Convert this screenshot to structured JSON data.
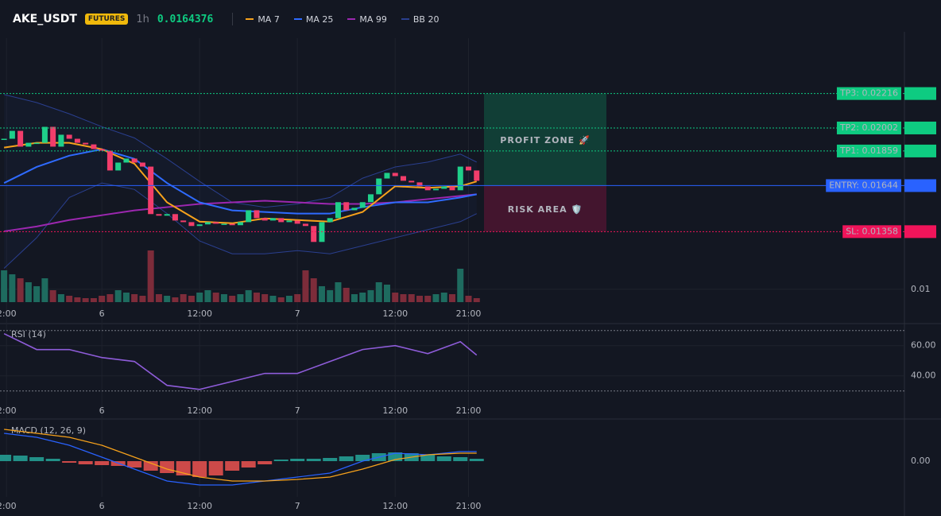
{
  "header": {
    "symbol": "AKE_USDT",
    "badge": "FUTURES",
    "timeframe": "1h",
    "price": "0.0164376"
  },
  "chart_data": {
    "type": "candlestick",
    "xlim": [
      -0.5,
      110.5
    ],
    "xticks": [
      {
        "value": 0.3,
        "label": "2:00"
      },
      {
        "value": 12,
        "label": "6"
      },
      {
        "value": 24,
        "label": "12:00"
      },
      {
        "value": 36,
        "label": "7"
      },
      {
        "value": 48,
        "label": "12:00"
      },
      {
        "value": 57,
        "label": "21:00"
      }
    ],
    "ylim": [
      0.0092,
      0.0256
    ],
    "yticks": [
      {
        "value": 0.01,
        "label": "0.01"
      }
    ],
    "up_color": "#1fcf8a",
    "down_color": "#f23d6b",
    "close": [
      0.01935,
      0.01984,
      0.01886,
      0.0191,
      0.0191,
      0.02009,
      0.01886,
      0.0196,
      0.01935,
      0.0191,
      0.019,
      0.01871,
      0.01861,
      0.01738,
      0.01787,
      0.01812,
      0.01787,
      0.01762,
      0.01467,
      0.01457,
      0.01467,
      0.01427,
      0.01417,
      0.01393,
      0.01403,
      0.01417,
      0.01407,
      0.01407,
      0.01398,
      0.01417,
      0.01491,
      0.01442,
      0.01427,
      0.01442,
      0.01417,
      0.01427,
      0.01407,
      0.01393,
      0.01294,
      0.01417,
      0.01442,
      0.01541,
      0.01491,
      0.01506,
      0.01541,
      0.0159,
      0.01688,
      0.01723,
      0.01703,
      0.01674,
      0.01664,
      0.01639,
      0.01615,
      0.01624,
      0.01639,
      0.01615,
      0.01762,
      0.01738,
      0.01674
    ],
    "volume": [
      40,
      35,
      30,
      25,
      20,
      30,
      15,
      10,
      8,
      6,
      5,
      5,
      8,
      10,
      15,
      12,
      10,
      8,
      65,
      10,
      8,
      6,
      10,
      8,
      12,
      15,
      12,
      10,
      8,
      10,
      15,
      12,
      10,
      8,
      6,
      8,
      10,
      40,
      30,
      20,
      15,
      25,
      18,
      10,
      12,
      15,
      25,
      22,
      12,
      10,
      10,
      8,
      8,
      10,
      12,
      10,
      42,
      8,
      5
    ],
    "volume_lim": [
      0,
      332
    ],
    "line_x": [
      0,
      4,
      8,
      12,
      16,
      20,
      24,
      28,
      32,
      36,
      40,
      44,
      48,
      52,
      56,
      58
    ],
    "series": [
      {
        "name": "MA 7",
        "color": "#f7a21b",
        "values": [
          0.0188,
          0.0191,
          0.0191,
          0.0187,
          0.0178,
          0.0154,
          0.0142,
          0.0141,
          0.0144,
          0.0143,
          0.0142,
          0.0148,
          0.0164,
          0.0163,
          0.0164,
          0.0167
        ]
      },
      {
        "name": "MA 25",
        "color": "#2f6bff",
        "values": [
          0.0166,
          0.0176,
          0.0183,
          0.0187,
          0.0181,
          0.0166,
          0.0154,
          0.0149,
          0.0148,
          0.0147,
          0.0147,
          0.0151,
          0.0154,
          0.0154,
          0.0157,
          0.0159
        ]
      },
      {
        "name": "MA 99",
        "color": "#9c27b0",
        "values": [
          0.0136,
          0.0139,
          0.0143,
          0.0146,
          0.0149,
          0.0151,
          0.0153,
          0.0154,
          0.0155,
          0.0154,
          0.0153,
          0.0153,
          0.0154,
          0.0156,
          0.0158,
          0.0159
        ]
      },
      {
        "name": "BB 20",
        "color": "#2a3f8f",
        "values": [
          0.0221,
          0.0216,
          0.0209,
          0.0201,
          0.0194,
          0.0181,
          0.0167,
          0.0154,
          0.0151,
          0.0153,
          0.0157,
          0.0169,
          0.0176,
          0.0179,
          0.0184,
          0.0179
        ],
        "lower": [
          0.0113,
          0.0132,
          0.0157,
          0.0166,
          0.0162,
          0.0147,
          0.013,
          0.0122,
          0.0122,
          0.0124,
          0.0122,
          0.0127,
          0.0132,
          0.0137,
          0.0142,
          0.0147
        ]
      }
    ],
    "levels": [
      {
        "label": "TP3: 0.02216",
        "value": 0.02216,
        "axis_label": "0.02",
        "color": "#0ecb81",
        "style": "dotted"
      },
      {
        "label": "TP2: 0.02002",
        "value": 0.02002,
        "axis_label": "0.02",
        "color": "#0ecb81",
        "style": "dotted"
      },
      {
        "label": "TP1: 0.01859",
        "value": 0.01859,
        "axis_label": "0.02",
        "color": "#0ecb81",
        "style": "dotted"
      },
      {
        "label": "ENTRY: 0.01644",
        "value": 0.01644,
        "axis_label": "0.02",
        "color": "#2962ff",
        "style": "solid"
      },
      {
        "label": "SL: 0.01358",
        "value": 0.01358,
        "axis_label": "0.01",
        "color": "#f0145a",
        "style": "dotted"
      }
    ],
    "zones": [
      {
        "label": "PROFIT ZONE 🚀",
        "color": "#0ecb81"
      },
      {
        "label": "RISK AREA 🛡️",
        "color": "#f0145a"
      }
    ],
    "rsi": {
      "label": "RSI (14)",
      "color": "#8e5cd9",
      "ylim": [
        23,
        73
      ],
      "yticks": [
        {
          "value": 40,
          "label": "40.00"
        },
        {
          "value": 60,
          "label": "60.00"
        }
      ],
      "bands": [
        70,
        30
      ],
      "values": [
        67.9,
        57.4,
        57.4,
        52.1,
        49.5,
        33.7,
        31,
        36.3,
        41.6,
        41.6,
        49.5,
        57.4,
        60,
        54.7,
        62.6,
        53.7
      ]
    },
    "macd": {
      "label": "MACD (12, 26, 9)",
      "ylim": [
        -0.0009,
        0.00104
      ],
      "yticks": [
        {
          "value": 0,
          "label": "0.00"
        }
      ],
      "hist_x": [
        0,
        2,
        4,
        6,
        8,
        10,
        12,
        14,
        16,
        18,
        20,
        22,
        24,
        26,
        28,
        30,
        32,
        34,
        36,
        38,
        40,
        42,
        44,
        46,
        48,
        50,
        52,
        54,
        56,
        58
      ],
      "histogram": [
        0.00016,
        0.00014,
        0.0001,
        6e-05,
        -4e-05,
        -8e-05,
        -0.0001,
        -0.00012,
        -0.00016,
        -0.00024,
        -0.0003,
        -0.00036,
        -0.0004,
        -0.00036,
        -0.00024,
        -0.00016,
        -8e-05,
        4e-05,
        6e-05,
        6e-05,
        8e-05,
        0.00012,
        0.00016,
        0.0002,
        0.00022,
        0.0002,
        0.00016,
        0.00012,
        0.0001,
        6e-05
      ],
      "macd_color": "#2962ff",
      "signal_color": "#f7a21b",
      "macd": [
        0.0007,
        0.0006,
        0.0004,
        0.0001,
        -0.0002,
        -0.0005,
        -0.0006,
        -0.0006,
        -0.0005,
        -0.0004,
        -0.0003,
        0,
        0.0002,
        0.00016,
        0.00024,
        0.00024
      ],
      "signal": [
        0.0008,
        0.0007,
        0.0006,
        0.0004,
        0.0001,
        -0.0002,
        -0.0004,
        -0.0005,
        -0.0005,
        -0.00046,
        -0.0004,
        -0.0002,
        4e-05,
        0.00016,
        0.0002,
        0.0002
      ]
    }
  }
}
